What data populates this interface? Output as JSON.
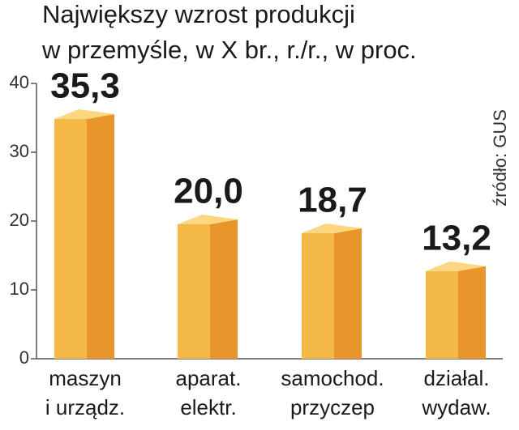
{
  "chart_data": {
    "type": "bar3d",
    "title": [
      "Największy wzrost produkcji",
      "w przemyśle, w X br., r./r., w proc."
    ],
    "source": "źródło: GUS",
    "categories": [
      [
        "maszyn",
        "i urządz."
      ],
      [
        "aparat.",
        "elektr."
      ],
      [
        "samochod.",
        "przyczep"
      ],
      [
        "działal.",
        "wydaw."
      ]
    ],
    "values": [
      35.3,
      20.0,
      18.7,
      13.2
    ],
    "value_labels": [
      "35,3",
      "20,0",
      "18,7",
      "13,2"
    ],
    "colors": {
      "front": "#f3b845",
      "side": "#e8962b",
      "top": "#fcd681"
    },
    "ylim": [
      0,
      40
    ],
    "yticks": [
      0,
      10,
      20,
      30,
      40
    ]
  }
}
